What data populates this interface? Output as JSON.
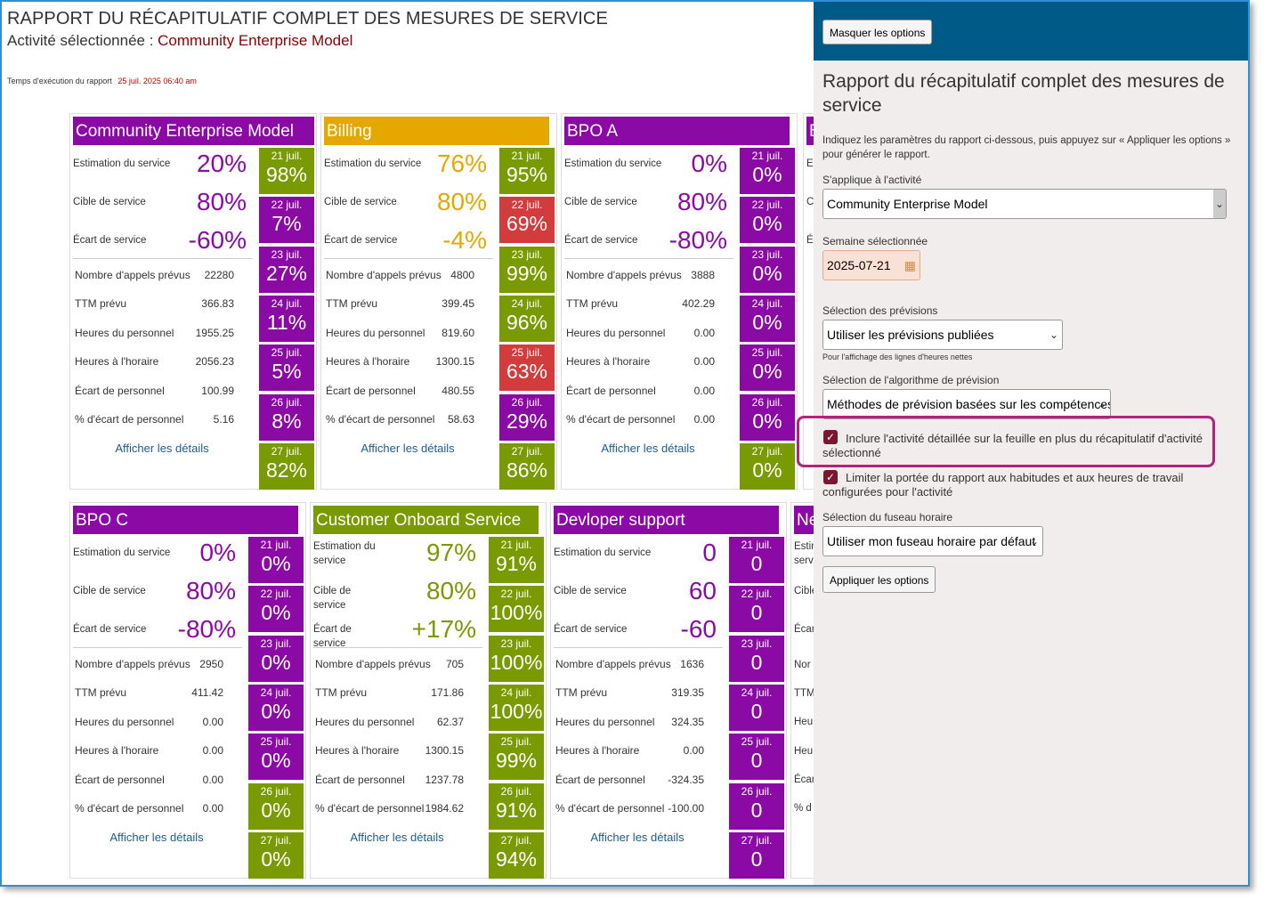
{
  "report": {
    "title": "RAPPORT DU RÉCAPITULATIF COMPLET DES MESURES DE SERVICE",
    "activity_prefix": "Activité sélectionnée :",
    "activity_name": "Community Enterprise Model",
    "exec_time_label": "Temps d'exécution du rapport",
    "exec_time_value": "25 juil. 2025 06:40 am"
  },
  "labels": {
    "service_estimate": "Estimation du service",
    "service_target": "Cible de service",
    "service_gap": "Écart de service",
    "calls": "Nombre d'appels prévus",
    "ttm": "TTM prévu",
    "staff_hours": "Heures du personnel",
    "sched_hours": "Heures à l'horaire",
    "staff_gap": "Écart de personnel",
    "staff_gap_pct": "% d'écart de personnel",
    "details": "Afficher les détails"
  },
  "days": [
    "21 juil.",
    "22 juil.",
    "23 juil.",
    "24 juil.",
    "25 juil.",
    "26 juil.",
    "27 juil."
  ],
  "colors": {
    "purple": "#8b0aa5",
    "gold": "#e4a800",
    "green": "#7a9a01",
    "red": "#d23c3c",
    "olive_text": "#7a9a01"
  },
  "cards": [
    {
      "title": "Community Enterprise Model",
      "title_color": "purple",
      "value_color": "purple",
      "estimate": "20%",
      "target": "80%",
      "gap": "-60%",
      "metrics": [
        "22280",
        "366.83",
        "1955.25",
        "2056.23",
        "100.99",
        "5.16"
      ],
      "day_values": [
        {
          "v": "98%",
          "c": "green"
        },
        {
          "v": "7%",
          "c": "purple"
        },
        {
          "v": "27%",
          "c": "purple"
        },
        {
          "v": "11%",
          "c": "purple"
        },
        {
          "v": "5%",
          "c": "purple"
        },
        {
          "v": "8%",
          "c": "purple"
        },
        {
          "v": "82%",
          "c": "green"
        }
      ]
    },
    {
      "title": "Billing",
      "title_color": "gold",
      "value_color": "gold",
      "estimate": "76%",
      "target": "80%",
      "gap": "-4%",
      "metrics": [
        "4800",
        "399.45",
        "819.60",
        "1300.15",
        "480.55",
        "58.63"
      ],
      "day_values": [
        {
          "v": "95%",
          "c": "green"
        },
        {
          "v": "69%",
          "c": "red"
        },
        {
          "v": "99%",
          "c": "green"
        },
        {
          "v": "96%",
          "c": "green"
        },
        {
          "v": "63%",
          "c": "red"
        },
        {
          "v": "29%",
          "c": "purple"
        },
        {
          "v": "86%",
          "c": "green"
        }
      ]
    },
    {
      "title": "BPO A",
      "title_color": "purple",
      "value_color": "purple",
      "estimate": "0%",
      "target": "80%",
      "gap": "-80%",
      "metrics": [
        "3888",
        "402.29",
        "0.00",
        "0.00",
        "0.00",
        "0.00"
      ],
      "day_values": [
        {
          "v": "0%",
          "c": "purple"
        },
        {
          "v": "0%",
          "c": "purple"
        },
        {
          "v": "0%",
          "c": "purple"
        },
        {
          "v": "0%",
          "c": "purple"
        },
        {
          "v": "0%",
          "c": "purple"
        },
        {
          "v": "0%",
          "c": "purple"
        },
        {
          "v": "0%",
          "c": "green"
        }
      ]
    },
    {
      "title": "BPO C",
      "title_color": "purple",
      "value_color": "purple",
      "estimate": "0%",
      "target": "80%",
      "gap": "-80%",
      "metrics": [
        "2950",
        "411.42",
        "0.00",
        "0.00",
        "0.00",
        "0.00"
      ],
      "day_values": [
        {
          "v": "0%",
          "c": "purple"
        },
        {
          "v": "0%",
          "c": "purple"
        },
        {
          "v": "0%",
          "c": "purple"
        },
        {
          "v": "0%",
          "c": "purple"
        },
        {
          "v": "0%",
          "c": "purple"
        },
        {
          "v": "0%",
          "c": "green"
        },
        {
          "v": "0%",
          "c": "green"
        }
      ]
    },
    {
      "title": "Customer Onboard Service",
      "title_color": "green",
      "value_color": "olive_text",
      "estimate": "97%",
      "target": "80%",
      "gap": "+17%",
      "metrics": [
        "705",
        "171.86",
        "62.37",
        "1300.15",
        "1237.78",
        "1984.62"
      ],
      "day_values": [
        {
          "v": "91%",
          "c": "green"
        },
        {
          "v": "100%",
          "c": "green"
        },
        {
          "v": "100%",
          "c": "green"
        },
        {
          "v": "100%",
          "c": "green"
        },
        {
          "v": "99%",
          "c": "green"
        },
        {
          "v": "91%",
          "c": "green"
        },
        {
          "v": "94%",
          "c": "green"
        }
      ]
    },
    {
      "title": "Devloper support",
      "title_color": "purple",
      "value_color": "purple",
      "estimate": "0",
      "target": "60",
      "gap": "-60",
      "metrics": [
        "1636",
        "319.35",
        "324.35",
        "0.00",
        "-324.35",
        "-100.00"
      ],
      "day_values": [
        {
          "v": "0",
          "c": "purple"
        },
        {
          "v": "0",
          "c": "purple"
        },
        {
          "v": "0",
          "c": "purple"
        },
        {
          "v": "0",
          "c": "purple"
        },
        {
          "v": "0",
          "c": "purple"
        },
        {
          "v": "0",
          "c": "purple"
        },
        {
          "v": "0",
          "c": "purple"
        }
      ]
    }
  ],
  "partial_cards": {
    "top_title": "B",
    "top_labels": [
      "Es",
      "Ci",
      "Éc"
    ],
    "bottom_title": "Ne",
    "bottom_labels": [
      "Estin",
      "servi",
      "Cible",
      "Écar",
      "Nor",
      "TTM",
      "Heu",
      "Heu",
      "Écar",
      "% d"
    ]
  },
  "panel": {
    "hide_button": "Masquer les options",
    "title": "Rapport du récapitulatif complet des mesures de service",
    "description": "Indiquez les paramètres du rapport ci-dessous, puis appuyez sur « Appliquer les options » pour générer le rapport.",
    "activity_label": "S'applique à l'activité",
    "activity_value": "Community Enterprise Model",
    "week_label": "Semaine sélectionnée",
    "week_value": "2025-07-21",
    "forecast_label": "Sélection des prévisions",
    "forecast_value": "Utiliser les prévisions publiées",
    "forecast_hint": "Pour l'affichage des lignes d'heures nettes",
    "algo_label": "Sélection de l'algorithme de prévision",
    "algo_value": "Méthodes de prévision basées sur les compétences",
    "include_detail": "Inclure l'activité détaillée sur la feuille en plus du récapitulatif d'activité sélectionné",
    "limit_scope": "Limiter la portée du rapport aux habitudes et aux heures de travail configurées pour l'activité",
    "tz_label": "Sélection du fuseau horaire",
    "tz_value": "Utiliser mon fuseau horaire par défaut",
    "apply_button": "Appliquer les options",
    "partial_letters": [
      "T",
      "H",
      "H",
      "É"
    ]
  }
}
